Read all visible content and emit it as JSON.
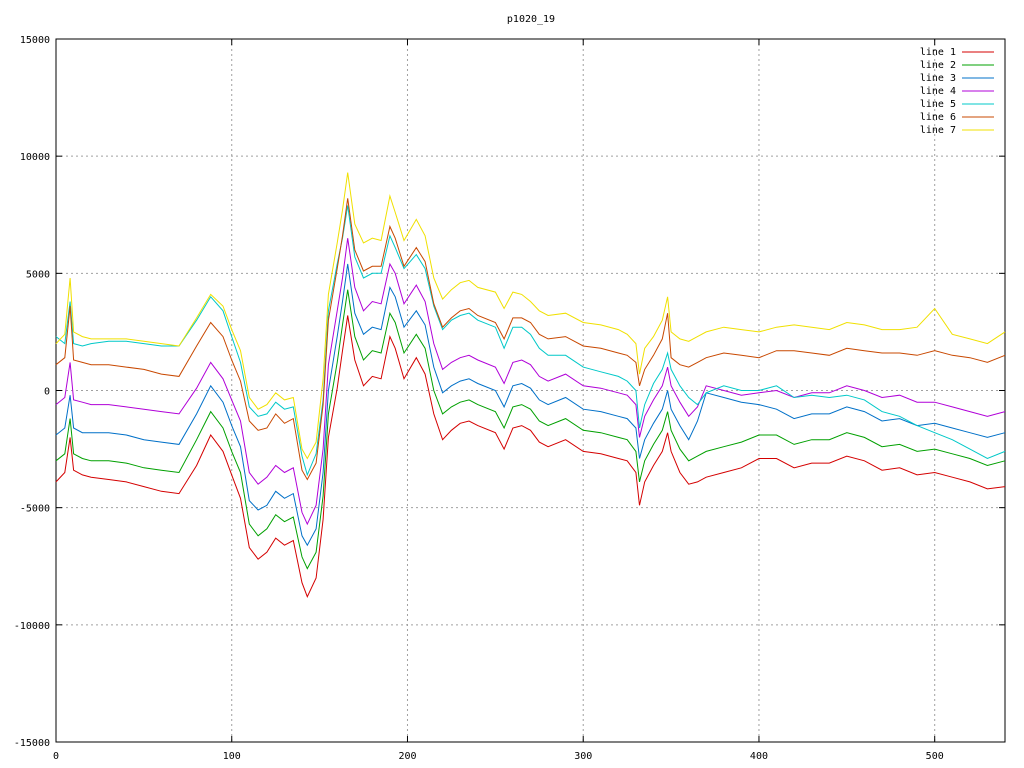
{
  "chart_data": {
    "type": "line",
    "title": "p1020_19",
    "xlabel": "",
    "ylabel": "",
    "xlim": [
      0,
      540
    ],
    "ylim": [
      -15000,
      15000
    ],
    "xticks": [
      0,
      100,
      200,
      300,
      400,
      500
    ],
    "yticks": [
      -15000,
      -10000,
      -5000,
      0,
      5000,
      10000,
      15000
    ],
    "xtick_labels": [
      "0",
      "100",
      "200",
      "300",
      "400",
      "500"
    ],
    "ytick_labels": [
      "-15000",
      "-10000",
      "-5000",
      "0",
      "5000",
      "10000",
      "15000"
    ],
    "grid": true,
    "legend_position": "top-right",
    "x": [
      0,
      5,
      8,
      10,
      15,
      20,
      30,
      40,
      50,
      60,
      70,
      80,
      88,
      95,
      100,
      105,
      110,
      115,
      120,
      125,
      130,
      135,
      140,
      143,
      148,
      152,
      155,
      160,
      163,
      166,
      170,
      175,
      180,
      185,
      190,
      193,
      198,
      205,
      210,
      215,
      220,
      225,
      230,
      235,
      240,
      250,
      255,
      260,
      265,
      270,
      275,
      280,
      290,
      300,
      310,
      320,
      325,
      330,
      332,
      335,
      340,
      345,
      348,
      350,
      355,
      360,
      365,
      370,
      380,
      390,
      400,
      410,
      420,
      430,
      440,
      450,
      460,
      470,
      480,
      490,
      500,
      510,
      520,
      530,
      540
    ],
    "series": [
      {
        "name": "line 1",
        "color": "#d40000",
        "values": [
          -3900,
          -3500,
          -2000,
          -3400,
          -3600,
          -3700,
          -3800,
          -3900,
          -4100,
          -4300,
          -4400,
          -3200,
          -1900,
          -2600,
          -3600,
          -4600,
          -6700,
          -7200,
          -6900,
          -6300,
          -6600,
          -6400,
          -8200,
          -8800,
          -8000,
          -5500,
          -2000,
          100,
          1700,
          3200,
          1300,
          200,
          600,
          500,
          2300,
          1800,
          500,
          1400,
          700,
          -1000,
          -2100,
          -1700,
          -1400,
          -1300,
          -1500,
          -1800,
          -2500,
          -1600,
          -1500,
          -1700,
          -2200,
          -2400,
          -2100,
          -2600,
          -2700,
          -2900,
          -3000,
          -3500,
          -4900,
          -3900,
          -3200,
          -2600,
          -1800,
          -2600,
          -3500,
          -4000,
          -3900,
          -3700,
          -3500,
          -3300,
          -2900,
          -2900,
          -3300,
          -3100,
          -3100,
          -2800,
          -3000,
          -3400,
          -3300,
          -3600,
          -3500,
          -3700,
          -3900,
          -4200,
          -4100
        ]
      },
      {
        "name": "line 2",
        "color": "#00a000",
        "values": [
          -3000,
          -2700,
          -1200,
          -2700,
          -2900,
          -3000,
          -3000,
          -3100,
          -3300,
          -3400,
          -3500,
          -2100,
          -900,
          -1600,
          -2600,
          -3500,
          -5700,
          -6200,
          -5900,
          -5300,
          -5600,
          -5400,
          -7100,
          -7600,
          -6900,
          -4500,
          -1000,
          1200,
          2800,
          4300,
          2300,
          1300,
          1700,
          1600,
          3300,
          2900,
          1600,
          2400,
          1800,
          0,
          -1000,
          -700,
          -500,
          -400,
          -600,
          -900,
          -1600,
          -700,
          -600,
          -800,
          -1300,
          -1500,
          -1200,
          -1700,
          -1800,
          -2000,
          -2100,
          -2600,
          -3900,
          -3000,
          -2300,
          -1700,
          -900,
          -1700,
          -2500,
          -3000,
          -2800,
          -2600,
          -2400,
          -2200,
          -1900,
          -1900,
          -2300,
          -2100,
          -2100,
          -1800,
          -2000,
          -2400,
          -2300,
          -2600,
          -2500,
          -2700,
          -2900,
          -3200,
          -3000
        ]
      },
      {
        "name": "line 3",
        "color": "#0070c8",
        "values": [
          -1900,
          -1600,
          -200,
          -1600,
          -1800,
          -1800,
          -1800,
          -1900,
          -2100,
          -2200,
          -2300,
          -1000,
          200,
          -500,
          -1500,
          -2400,
          -4700,
          -5100,
          -4900,
          -4300,
          -4600,
          -4400,
          -6200,
          -6600,
          -5900,
          -3500,
          0,
          2300,
          3800,
          5400,
          3300,
          2400,
          2700,
          2600,
          4400,
          4000,
          2700,
          3400,
          2800,
          1000,
          -100,
          200,
          400,
          500,
          300,
          0,
          -700,
          200,
          300,
          100,
          -400,
          -600,
          -300,
          -800,
          -900,
          -1100,
          -1200,
          -1600,
          -2900,
          -2100,
          -1400,
          -800,
          0,
          -800,
          -1500,
          -2100,
          -1300,
          -100,
          -300,
          -500,
          -600,
          -800,
          -1200,
          -1000,
          -1000,
          -700,
          -900,
          -1300,
          -1200,
          -1500,
          -1400,
          -1600,
          -1800,
          -2000,
          -1800
        ]
      },
      {
        "name": "line 4",
        "color": "#b000d8",
        "values": [
          -600,
          -300,
          1200,
          -400,
          -500,
          -600,
          -600,
          -700,
          -800,
          -900,
          -1000,
          100,
          1200,
          500,
          -400,
          -1300,
          -3500,
          -4000,
          -3700,
          -3200,
          -3500,
          -3300,
          -5200,
          -5700,
          -4900,
          -2500,
          1100,
          3400,
          4800,
          6500,
          4400,
          3400,
          3800,
          3700,
          5400,
          5000,
          3700,
          4500,
          3800,
          2000,
          900,
          1200,
          1400,
          1500,
          1300,
          1000,
          300,
          1200,
          1300,
          1100,
          600,
          400,
          700,
          200,
          100,
          -100,
          -200,
          -600,
          -2000,
          -1100,
          -400,
          200,
          1000,
          200,
          -500,
          -1100,
          -700,
          200,
          0,
          -200,
          -100,
          0,
          -300,
          -100,
          -100,
          200,
          0,
          -300,
          -200,
          -500,
          -500,
          -700,
          -900,
          -1100,
          -900
        ]
      },
      {
        "name": "line 5",
        "color": "#00c8c8",
        "values": [
          2300,
          2000,
          3800,
          2000,
          1900,
          2000,
          2100,
          2100,
          2000,
          1900,
          1900,
          3000,
          4000,
          3400,
          2300,
          1200,
          -700,
          -1100,
          -1000,
          -500,
          -800,
          -700,
          -2800,
          -3600,
          -2700,
          -400,
          3400,
          5400,
          6500,
          7900,
          5700,
          4800,
          5000,
          5000,
          6600,
          6100,
          5200,
          5800,
          5200,
          3600,
          2600,
          3000,
          3200,
          3300,
          3000,
          2700,
          1800,
          2700,
          2700,
          2400,
          1800,
          1500,
          1500,
          1000,
          800,
          600,
          400,
          0,
          -1600,
          -600,
          300,
          900,
          1600,
          900,
          200,
          -300,
          -600,
          -100,
          200,
          0,
          0,
          200,
          -300,
          -200,
          -300,
          -200,
          -400,
          -900,
          -1100,
          -1500,
          -1800,
          -2100,
          -2500,
          -2900,
          -2600
        ]
      },
      {
        "name": "line 6",
        "color": "#c84800",
        "values": [
          1100,
          1400,
          3600,
          1300,
          1200,
          1100,
          1100,
          1000,
          900,
          700,
          600,
          1900,
          2900,
          2300,
          1300,
          400,
          -1300,
          -1700,
          -1600,
          -1000,
          -1400,
          -1200,
          -3400,
          -3800,
          -3100,
          -600,
          3000,
          5200,
          6600,
          8200,
          6000,
          5100,
          5300,
          5300,
          7000,
          6500,
          5300,
          6100,
          5500,
          3700,
          2700,
          3100,
          3400,
          3500,
          3200,
          2900,
          2200,
          3100,
          3100,
          2900,
          2400,
          2200,
          2300,
          1900,
          1800,
          1600,
          1500,
          1200,
          200,
          900,
          1500,
          2200,
          3300,
          1400,
          1100,
          1000,
          1200,
          1400,
          1600,
          1500,
          1400,
          1700,
          1700,
          1600,
          1500,
          1800,
          1700,
          1600,
          1600,
          1500,
          1700,
          1500,
          1400,
          1200,
          1500
        ]
      },
      {
        "name": "line 7",
        "color": "#f0e000",
        "values": [
          2000,
          2400,
          4800,
          2500,
          2300,
          2200,
          2200,
          2200,
          2100,
          2000,
          1900,
          3100,
          4100,
          3600,
          2600,
          1700,
          -300,
          -800,
          -600,
          -100,
          -400,
          -300,
          -2500,
          -2900,
          -2200,
          500,
          4100,
          6300,
          7700,
          9300,
          7100,
          6300,
          6500,
          6400,
          8300,
          7600,
          6400,
          7300,
          6600,
          4800,
          3900,
          4300,
          4600,
          4700,
          4400,
          4200,
          3500,
          4200,
          4100,
          3800,
          3400,
          3200,
          3300,
          2900,
          2800,
          2600,
          2400,
          2000,
          700,
          1800,
          2300,
          3000,
          4000,
          2500,
          2200,
          2100,
          2300,
          2500,
          2700,
          2600,
          2500,
          2700,
          2800,
          2700,
          2600,
          2900,
          2800,
          2600,
          2600,
          2700,
          3500,
          2400,
          2200,
          2000,
          2500
        ]
      }
    ]
  }
}
